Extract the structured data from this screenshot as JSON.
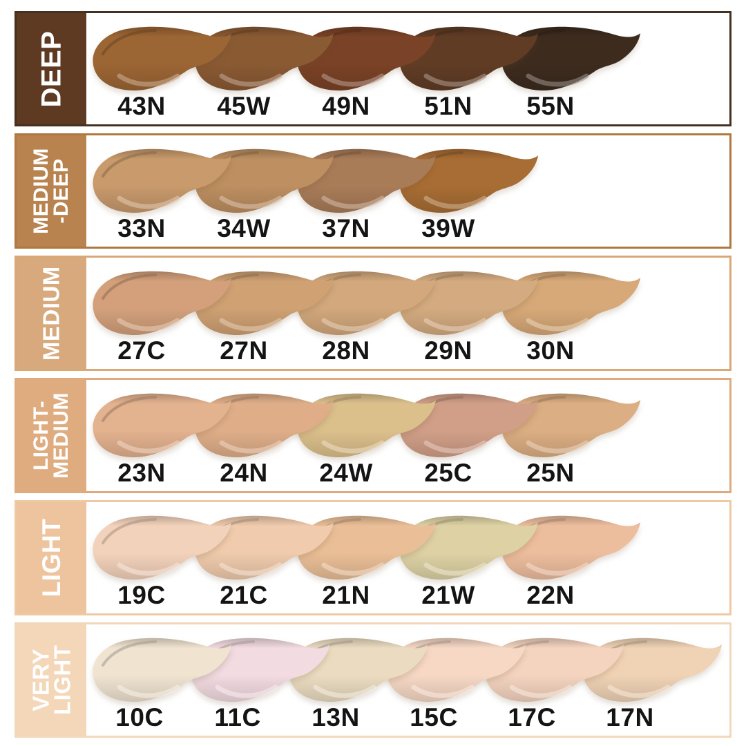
{
  "title": "foundation-shade-chart",
  "rows": [
    {
      "label": "DEEP",
      "sidebar_color": "#5e3a22",
      "border_color": "#46301f",
      "shades": [
        {
          "code": "43N",
          "color": "#9c6534"
        },
        {
          "code": "45W",
          "color": "#8a5a33"
        },
        {
          "code": "49N",
          "color": "#7a4226"
        },
        {
          "code": "51N",
          "color": "#603c25"
        },
        {
          "code": "55N",
          "color": "#3d2b1e"
        }
      ]
    },
    {
      "label": "MEDIUM\n-DEEP",
      "sidebar_color": "#b8834e",
      "border_color": "#b0783f",
      "shades": [
        {
          "code": "33N",
          "color": "#c89a6c"
        },
        {
          "code": "34W",
          "color": "#bd8f61"
        },
        {
          "code": "37N",
          "color": "#a97c58"
        },
        {
          "code": "39W",
          "color": "#a86d34"
        }
      ]
    },
    {
      "label": "MEDIUM",
      "sidebar_color": "#d7a97c",
      "border_color": "#d8a878",
      "shades": [
        {
          "code": "27C",
          "color": "#d3a07b"
        },
        {
          "code": "27N",
          "color": "#cfa173"
        },
        {
          "code": "28N",
          "color": "#d2a87c"
        },
        {
          "code": "29N",
          "color": "#d4ab80"
        },
        {
          "code": "30N",
          "color": "#d7a978"
        }
      ]
    },
    {
      "label": "LIGHT-\nMEDIUM",
      "sidebar_color": "#dfac80",
      "border_color": "#dfab7e",
      "shades": [
        {
          "code": "23N",
          "color": "#e3b28f"
        },
        {
          "code": "24N",
          "color": "#dfae89"
        },
        {
          "code": "24W",
          "color": "#dcc08c"
        },
        {
          "code": "25C",
          "color": "#d19f88"
        },
        {
          "code": "25N",
          "color": "#dcae83"
        }
      ]
    },
    {
      "label": "LIGHT",
      "sidebar_color": "#eec49e",
      "border_color": "#eec9a1",
      "shades": [
        {
          "code": "19C",
          "color": "#f3d2bb"
        },
        {
          "code": "21C",
          "color": "#f0cbad"
        },
        {
          "code": "21N",
          "color": "#eabf97"
        },
        {
          "code": "21W",
          "color": "#ded2a5"
        },
        {
          "code": "22N",
          "color": "#edbe9e"
        }
      ]
    },
    {
      "label": "VERY\nLIGHT",
      "sidebar_color": "#f3d7b8",
      "border_color": "#f2d8ba",
      "shades": [
        {
          "code": "10C",
          "color": "#f0e3d0"
        },
        {
          "code": "11C",
          "color": "#f2dbe1"
        },
        {
          "code": "13N",
          "color": "#ebdcc1"
        },
        {
          "code": "15C",
          "color": "#f6d8c5"
        },
        {
          "code": "17C",
          "color": "#f4d4bf"
        },
        {
          "code": "17N",
          "color": "#f0d3b5"
        }
      ]
    }
  ]
}
